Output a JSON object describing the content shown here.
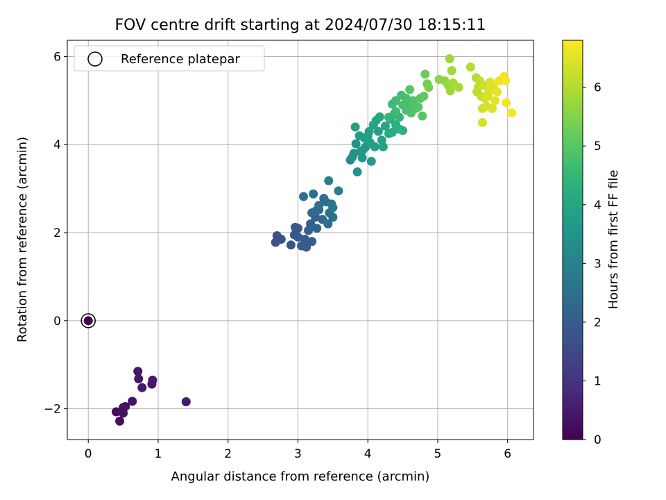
{
  "chart_data": {
    "type": "scatter",
    "title": "FOV centre drift starting at 2024/07/30 18:15:11",
    "xlabel": "Angular distance from reference (arcmin)",
    "ylabel": "Rotation from reference (arcmin)",
    "xlim": [
      -0.3,
      6.37
    ],
    "ylim": [
      -2.7,
      6.37
    ],
    "xticks": [
      0,
      1,
      2,
      3,
      4,
      5,
      6
    ],
    "yticks": [
      -2,
      0,
      2,
      4,
      6
    ],
    "xtick_labels": [
      "0",
      "1",
      "2",
      "3",
      "4",
      "5",
      "6"
    ],
    "ytick_labels": [
      "−2",
      "0",
      "2",
      "4",
      "6"
    ],
    "grid": true,
    "colormap": "viridis",
    "colorbar": {
      "label": "Hours from first FF file",
      "range": [
        0,
        6.8
      ],
      "ticks": [
        0,
        1,
        2,
        3,
        4,
        5,
        6
      ],
      "tick_labels": [
        "0",
        "1",
        "2",
        "3",
        "4",
        "5",
        "6"
      ]
    },
    "legend": {
      "placement": "top-left",
      "entries": [
        "Reference platepar"
      ]
    },
    "reference_point": {
      "x": 0,
      "y": 0
    },
    "points": [
      {
        "x": 0.0,
        "y": 0.0,
        "h": 0.0
      },
      {
        "x": 0.4,
        "y": -2.07,
        "h": 0.2
      },
      {
        "x": 0.45,
        "y": -2.28,
        "h": 0.25
      },
      {
        "x": 0.48,
        "y": -2.05,
        "h": 0.3
      },
      {
        "x": 0.5,
        "y": -1.97,
        "h": 0.3
      },
      {
        "x": 0.53,
        "y": -1.95,
        "h": 0.35
      },
      {
        "x": 0.5,
        "y": -2.1,
        "h": 0.3
      },
      {
        "x": 0.63,
        "y": -1.83,
        "h": 0.35
      },
      {
        "x": 0.71,
        "y": -1.15,
        "h": 0.4
      },
      {
        "x": 0.72,
        "y": -1.32,
        "h": 0.4
      },
      {
        "x": 0.77,
        "y": -1.52,
        "h": 0.45
      },
      {
        "x": 0.91,
        "y": -1.44,
        "h": 0.45
      },
      {
        "x": 0.92,
        "y": -1.35,
        "h": 0.5
      },
      {
        "x": 1.4,
        "y": -1.84,
        "h": 0.45
      },
      {
        "x": 2.7,
        "y": 1.93,
        "h": 1.7
      },
      {
        "x": 2.68,
        "y": 1.78,
        "h": 1.7
      },
      {
        "x": 2.76,
        "y": 1.85,
        "h": 1.75
      },
      {
        "x": 2.9,
        "y": 1.72,
        "h": 1.8
      },
      {
        "x": 2.95,
        "y": 1.95,
        "h": 1.8
      },
      {
        "x": 3.0,
        "y": 2.1,
        "h": 1.85
      },
      {
        "x": 3.05,
        "y": 1.7,
        "h": 1.9
      },
      {
        "x": 3.1,
        "y": 1.85,
        "h": 1.9
      },
      {
        "x": 3.12,
        "y": 1.67,
        "h": 1.95
      },
      {
        "x": 3.15,
        "y": 2.05,
        "h": 2.0
      },
      {
        "x": 3.2,
        "y": 1.8,
        "h": 2.0
      },
      {
        "x": 3.0,
        "y": 1.9,
        "h": 1.9
      },
      {
        "x": 2.96,
        "y": 2.12,
        "h": 1.85
      },
      {
        "x": 3.18,
        "y": 2.2,
        "h": 2.05
      },
      {
        "x": 3.25,
        "y": 2.35,
        "h": 2.15
      },
      {
        "x": 3.27,
        "y": 2.1,
        "h": 2.15
      },
      {
        "x": 3.3,
        "y": 2.52,
        "h": 2.25
      },
      {
        "x": 3.35,
        "y": 2.3,
        "h": 2.3
      },
      {
        "x": 3.4,
        "y": 2.7,
        "h": 2.4
      },
      {
        "x": 3.45,
        "y": 2.45,
        "h": 2.45
      },
      {
        "x": 3.43,
        "y": 2.2,
        "h": 2.4
      },
      {
        "x": 3.08,
        "y": 2.82,
        "h": 2.5
      },
      {
        "x": 3.22,
        "y": 2.88,
        "h": 2.55
      },
      {
        "x": 3.3,
        "y": 2.62,
        "h": 2.5
      },
      {
        "x": 3.48,
        "y": 2.65,
        "h": 2.6
      },
      {
        "x": 3.5,
        "y": 2.57,
        "h": 2.65
      },
      {
        "x": 3.44,
        "y": 3.18,
        "h": 2.9
      },
      {
        "x": 3.58,
        "y": 2.95,
        "h": 2.9
      },
      {
        "x": 3.26,
        "y": 2.5,
        "h": 2.4
      },
      {
        "x": 3.37,
        "y": 2.78,
        "h": 2.45
      },
      {
        "x": 3.5,
        "y": 2.35,
        "h": 2.5
      },
      {
        "x": 3.2,
        "y": 2.45,
        "h": 2.35
      },
      {
        "x": 3.75,
        "y": 3.65,
        "h": 3.3
      },
      {
        "x": 3.8,
        "y": 3.8,
        "h": 3.4
      },
      {
        "x": 3.85,
        "y": 3.38,
        "h": 3.45
      },
      {
        "x": 3.9,
        "y": 3.85,
        "h": 3.5
      },
      {
        "x": 3.83,
        "y": 4.02,
        "h": 3.55
      },
      {
        "x": 3.92,
        "y": 3.7,
        "h": 3.55
      },
      {
        "x": 3.97,
        "y": 3.95,
        "h": 3.6
      },
      {
        "x": 3.88,
        "y": 4.2,
        "h": 3.65
      },
      {
        "x": 4.0,
        "y": 4.2,
        "h": 3.7
      },
      {
        "x": 4.05,
        "y": 3.62,
        "h": 3.7
      },
      {
        "x": 4.03,
        "y": 4.05,
        "h": 3.75
      },
      {
        "x": 4.1,
        "y": 3.95,
        "h": 3.8
      },
      {
        "x": 4.15,
        "y": 4.3,
        "h": 3.85
      },
      {
        "x": 4.2,
        "y": 4.1,
        "h": 3.9
      },
      {
        "x": 4.22,
        "y": 3.95,
        "h": 3.9
      },
      {
        "x": 4.08,
        "y": 4.45,
        "h": 3.95
      },
      {
        "x": 4.12,
        "y": 4.55,
        "h": 4.0
      },
      {
        "x": 4.17,
        "y": 4.63,
        "h": 4.05
      },
      {
        "x": 3.95,
        "y": 4.15,
        "h": 3.75
      },
      {
        "x": 3.82,
        "y": 4.4,
        "h": 3.85
      },
      {
        "x": 4.25,
        "y": 4.42,
        "h": 4.05
      },
      {
        "x": 4.3,
        "y": 4.25,
        "h": 4.1
      },
      {
        "x": 4.32,
        "y": 4.58,
        "h": 4.15
      },
      {
        "x": 4.35,
        "y": 4.28,
        "h": 4.2
      },
      {
        "x": 4.4,
        "y": 4.45,
        "h": 4.25
      },
      {
        "x": 4.45,
        "y": 4.35,
        "h": 4.3
      },
      {
        "x": 4.5,
        "y": 4.32,
        "h": 4.35
      },
      {
        "x": 4.38,
        "y": 4.7,
        "h": 4.4
      },
      {
        "x": 4.45,
        "y": 4.62,
        "h": 4.45
      },
      {
        "x": 4.02,
        "y": 4.3,
        "h": 3.8
      },
      {
        "x": 3.93,
        "y": 3.88,
        "h": 3.6
      },
      {
        "x": 3.78,
        "y": 3.72,
        "h": 3.45
      },
      {
        "x": 4.35,
        "y": 4.92,
        "h": 4.6
      },
      {
        "x": 4.4,
        "y": 5.0,
        "h": 4.65
      },
      {
        "x": 4.48,
        "y": 5.12,
        "h": 4.7
      },
      {
        "x": 4.55,
        "y": 5.05,
        "h": 4.75
      },
      {
        "x": 4.6,
        "y": 4.92,
        "h": 4.8
      },
      {
        "x": 4.55,
        "y": 4.78,
        "h": 4.8
      },
      {
        "x": 4.62,
        "y": 4.72,
        "h": 4.85
      },
      {
        "x": 4.65,
        "y": 5.0,
        "h": 4.9
      },
      {
        "x": 4.68,
        "y": 4.82,
        "h": 4.9
      },
      {
        "x": 4.72,
        "y": 4.85,
        "h": 4.95
      },
      {
        "x": 4.75,
        "y": 5.05,
        "h": 5.0
      },
      {
        "x": 4.78,
        "y": 4.65,
        "h": 5.0
      },
      {
        "x": 4.6,
        "y": 5.25,
        "h": 5.05
      },
      {
        "x": 4.8,
        "y": 5.1,
        "h": 5.1
      },
      {
        "x": 4.82,
        "y": 5.6,
        "h": 5.25
      },
      {
        "x": 4.85,
        "y": 5.38,
        "h": 5.3
      },
      {
        "x": 4.87,
        "y": 5.3,
        "h": 5.35
      },
      {
        "x": 4.5,
        "y": 4.9,
        "h": 4.75
      },
      {
        "x": 4.4,
        "y": 4.75,
        "h": 4.6
      },
      {
        "x": 4.3,
        "y": 4.62,
        "h": 4.5
      },
      {
        "x": 5.02,
        "y": 5.48,
        "h": 5.6
      },
      {
        "x": 5.1,
        "y": 5.45,
        "h": 5.65
      },
      {
        "x": 5.15,
        "y": 5.35,
        "h": 5.7
      },
      {
        "x": 5.17,
        "y": 5.95,
        "h": 5.75
      },
      {
        "x": 5.2,
        "y": 5.68,
        "h": 5.8
      },
      {
        "x": 5.18,
        "y": 5.22,
        "h": 5.8
      },
      {
        "x": 5.22,
        "y": 5.4,
        "h": 5.85
      },
      {
        "x": 5.3,
        "y": 5.3,
        "h": 5.9
      },
      {
        "x": 5.47,
        "y": 5.76,
        "h": 6.0
      },
      {
        "x": 5.55,
        "y": 5.52,
        "h": 6.05
      },
      {
        "x": 5.58,
        "y": 5.3,
        "h": 6.1
      },
      {
        "x": 5.56,
        "y": 5.2,
        "h": 6.1
      },
      {
        "x": 5.6,
        "y": 5.45,
        "h": 6.15
      },
      {
        "x": 5.62,
        "y": 5.1,
        "h": 6.2
      },
      {
        "x": 5.65,
        "y": 5.35,
        "h": 6.25
      },
      {
        "x": 5.64,
        "y": 4.82,
        "h": 6.3
      },
      {
        "x": 5.68,
        "y": 5.05,
        "h": 6.3
      },
      {
        "x": 5.64,
        "y": 4.5,
        "h": 6.35
      },
      {
        "x": 5.7,
        "y": 4.87,
        "h": 6.4
      },
      {
        "x": 5.73,
        "y": 5.2,
        "h": 6.4
      },
      {
        "x": 5.75,
        "y": 5.42,
        "h": 6.45
      },
      {
        "x": 5.78,
        "y": 4.82,
        "h": 6.45
      },
      {
        "x": 5.8,
        "y": 5.3,
        "h": 6.5
      },
      {
        "x": 5.82,
        "y": 5.0,
        "h": 6.5
      },
      {
        "x": 5.85,
        "y": 5.2,
        "h": 6.55
      },
      {
        "x": 5.88,
        "y": 5.45,
        "h": 6.6
      },
      {
        "x": 5.92,
        "y": 5.48,
        "h": 6.6
      },
      {
        "x": 5.95,
        "y": 5.55,
        "h": 6.65
      },
      {
        "x": 5.97,
        "y": 5.45,
        "h": 6.7
      },
      {
        "x": 5.98,
        "y": 4.95,
        "h": 6.7
      },
      {
        "x": 6.06,
        "y": 4.72,
        "h": 6.75
      },
      {
        "x": 5.72,
        "y": 5.1,
        "h": 6.4
      },
      {
        "x": 5.76,
        "y": 5.32,
        "h": 6.45
      }
    ]
  }
}
